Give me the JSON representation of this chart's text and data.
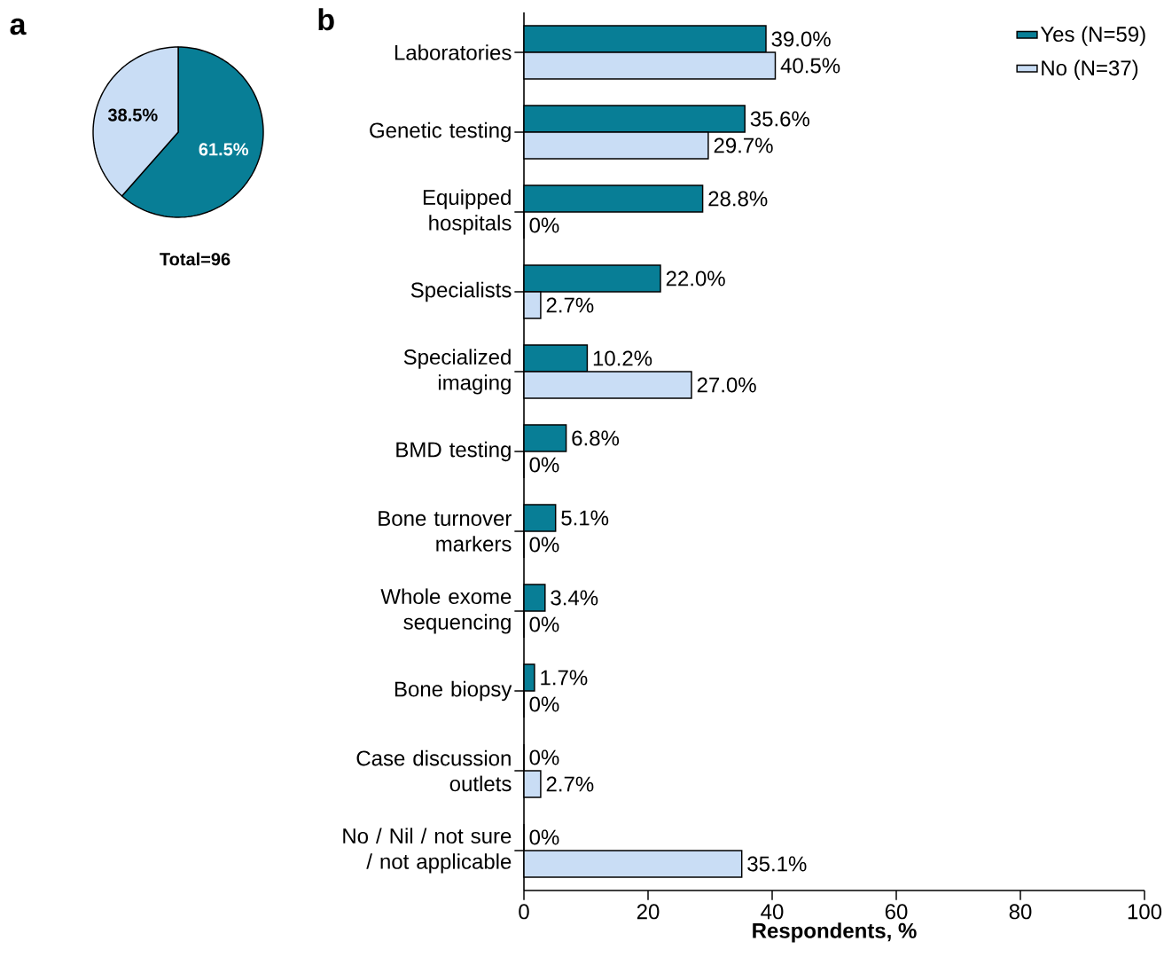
{
  "chart_data": [
    {
      "type": "pie",
      "title": "a",
      "categories": [
        null,
        null
      ],
      "values": [
        61.5,
        38.5
      ],
      "colors": [
        "#087e96",
        "#c9ddf5"
      ],
      "value_labels": [
        "61.5%",
        "38.5%"
      ],
      "annotations": [
        "Total=96"
      ]
    },
    {
      "type": "bar",
      "title": "b",
      "orientation": "horizontal",
      "categories": [
        "Laboratories",
        "Genetic testing",
        "Equipped hospitals",
        "Specialists",
        "Specialized imaging",
        "BMD testing",
        "Bone turnover markers",
        "Whole exome sequencing",
        "Bone biopsy",
        "Case discussion outlets",
        "No / Nil / not sure / not applicable"
      ],
      "series": [
        {
          "name": "Yes (N=59)",
          "color": "#087e96",
          "values": [
            39.0,
            35.6,
            28.8,
            22.0,
            10.2,
            6.8,
            5.1,
            3.4,
            1.7,
            0,
            0
          ],
          "value_labels": [
            "39.0%",
            "35.6%",
            "28.8%",
            "22.0%",
            "10.2%",
            "6.8%",
            "5.1%",
            "3.4%",
            "1.7%",
            "0%",
            "0%"
          ]
        },
        {
          "name": "No (N=37)",
          "color": "#c9ddf5",
          "values": [
            40.5,
            29.7,
            0,
            2.7,
            27.0,
            0,
            0,
            0,
            0,
            2.7,
            35.1
          ],
          "value_labels": [
            "40.5%",
            "29.7%",
            "0%",
            "2.7%",
            "27.0%",
            "0%",
            "0%",
            "0%",
            "0%",
            "2.7%",
            "35.1%"
          ]
        }
      ],
      "xlim": [
        0,
        100
      ],
      "xticks": [
        0,
        20,
        40,
        60,
        80,
        100
      ],
      "xlabel": "Respondents, %",
      "legend": "top right",
      "grid": false
    }
  ]
}
